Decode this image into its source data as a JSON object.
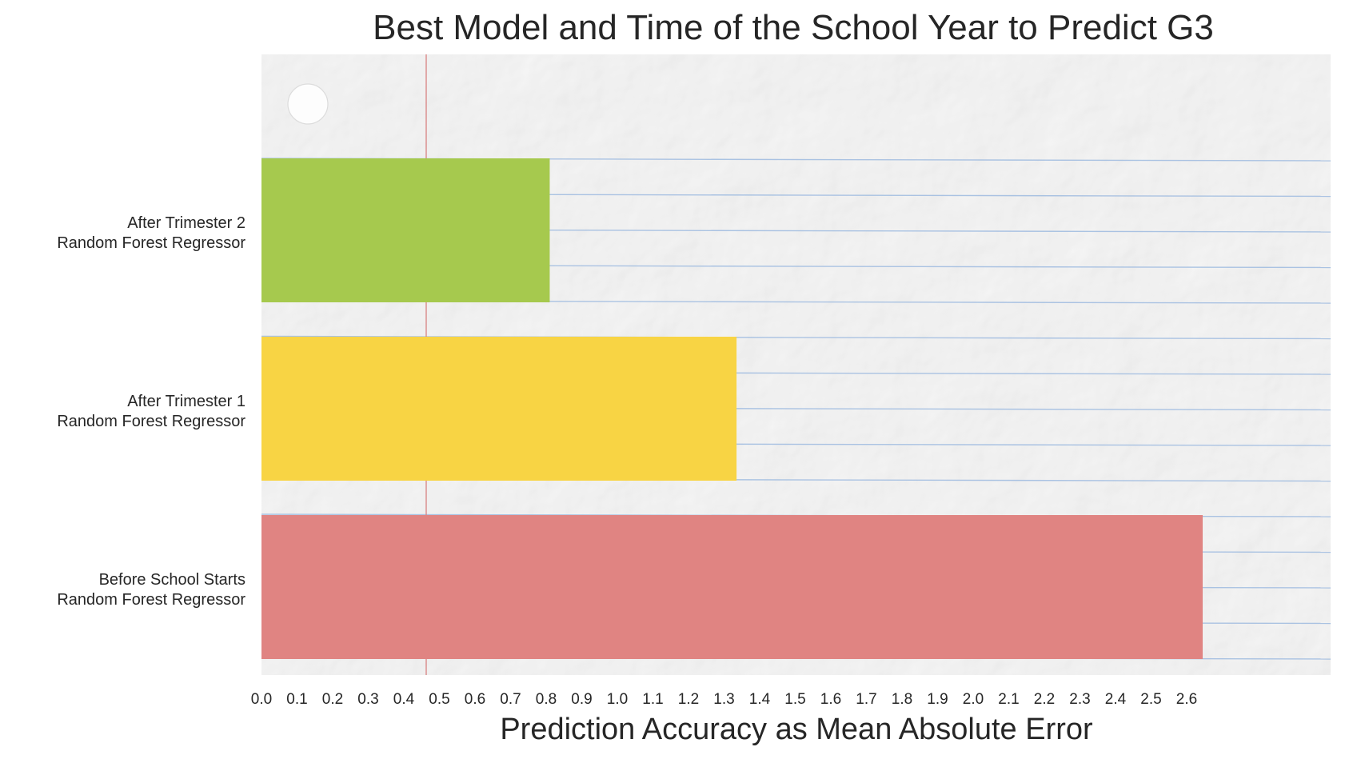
{
  "chart_data": {
    "type": "bar",
    "orientation": "horizontal",
    "title": "Best Model and Time of the School Year to Predict G3",
    "xlabel": "Prediction Accuracy as Mean Absolute Error",
    "ylabel": "",
    "xlim": [
      0.0,
      3.02
    ],
    "x_ticks": [
      "0.0",
      "0.1",
      "0.2",
      "0.3",
      "0.4",
      "0.5",
      "0.6",
      "0.7",
      "0.8",
      "0.9",
      "1.0",
      "1.1",
      "1.2",
      "1.3",
      "1.4",
      "1.5",
      "1.6",
      "1.7",
      "1.8",
      "1.9",
      "2.0",
      "2.1",
      "2.2",
      "2.3",
      "2.4",
      "2.5",
      "2.6"
    ],
    "categories": [
      {
        "line1": "After Trimester 2",
        "line2": "Random Forest Regressor"
      },
      {
        "line1": "After Trimester 1",
        "line2": "Random Forest Regressor"
      },
      {
        "line1": "Before School Starts",
        "line2": "Random Forest Regressor"
      }
    ],
    "values": [
      0.81,
      1.335,
      2.645
    ],
    "colors": [
      "#a6c94e",
      "#f8d444",
      "#e08482"
    ],
    "background": "crumpled lined notebook paper",
    "grid": false,
    "legend": "none"
  }
}
